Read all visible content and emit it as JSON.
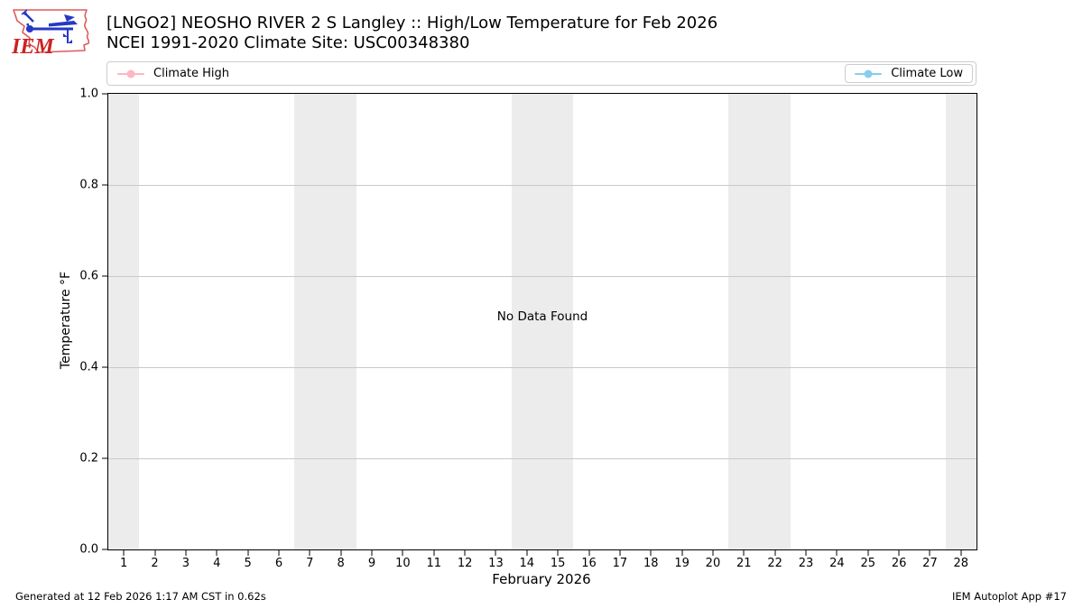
{
  "header": {
    "title_line1": "[LNGO2] NEOSHO RIVER 2 S Langley :: High/Low Temperature for Feb 2026",
    "title_line2": "NCEI 1991-2020 Climate Site: USC00348380",
    "logo_text": "IEM"
  },
  "legend": {
    "left": {
      "label": "Climate High",
      "color": "#ffb6c1"
    },
    "right": {
      "label": "Climate Low",
      "color": "#87ceeb"
    }
  },
  "chart_data": {
    "type": "line",
    "title": "[LNGO2] NEOSHO RIVER 2 S Langley :: High/Low Temperature for Feb 2026",
    "subtitle": "NCEI 1991-2020 Climate Site: USC00348380",
    "xlabel": "February 2026",
    "ylabel": "Temperature °F",
    "xlim": [
      0.5,
      28.5
    ],
    "ylim": [
      0.0,
      1.0
    ],
    "x_ticks": [
      1,
      2,
      3,
      4,
      5,
      6,
      7,
      8,
      9,
      10,
      11,
      12,
      13,
      14,
      15,
      16,
      17,
      18,
      19,
      20,
      21,
      22,
      23,
      24,
      25,
      26,
      27,
      28
    ],
    "y_ticks": [
      0.0,
      0.2,
      0.4,
      0.6,
      0.8,
      1.0
    ],
    "y_tick_labels": [
      "0.0",
      "0.2",
      "0.4",
      "0.6",
      "0.8",
      "1.0"
    ],
    "grid": "horizontal gridlines only",
    "legend_position": "top strip spanning plot width; Climate High left, Climate Low right",
    "series": [
      {
        "name": "Climate High",
        "color": "#ffb6c1",
        "x": [],
        "values": []
      },
      {
        "name": "Climate Low",
        "color": "#87ceeb",
        "x": [],
        "values": []
      }
    ],
    "no_data_message": "No Data Found",
    "weekend_bands": [
      [
        0.5,
        1.5
      ],
      [
        6.5,
        8.5
      ],
      [
        13.5,
        15.5
      ],
      [
        20.5,
        22.5
      ],
      [
        27.5,
        28.5
      ]
    ],
    "band_color": "#ececec"
  },
  "footer": {
    "left": "Generated at 12 Feb 2026 1:17 AM CST in 0.62s",
    "right": "IEM Autoplot App #17"
  }
}
